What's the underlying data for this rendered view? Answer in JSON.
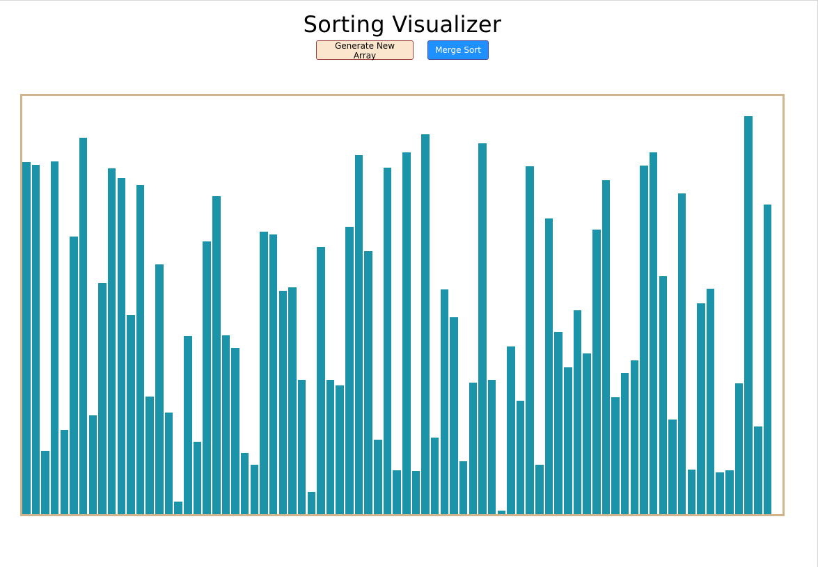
{
  "app": {
    "title": "Sorting Visualizer"
  },
  "controls": {
    "generate_label": "Generate New Array",
    "merge_sort_label": "Merge Sort"
  },
  "colors": {
    "bar": "#1b93a9",
    "container_border": "#d2b48c",
    "generate_button_bg": "#fce5cd",
    "merge_button_bg": "#1e90ff"
  },
  "array": {
    "max_value": 601,
    "values": [
      506,
      502,
      91,
      507,
      121,
      399,
      541,
      142,
      332,
      497,
      483,
      286,
      473,
      169,
      359,
      146,
      18,
      256,
      104,
      392,
      457,
      257,
      239,
      88,
      71,
      406,
      402,
      321,
      326,
      193,
      32,
      384,
      193,
      185,
      413,
      516,
      378,
      107,
      498,
      63,
      520,
      62,
      546,
      110,
      323,
      283,
      76,
      189,
      533,
      193,
      5,
      241,
      163,
      500,
      71,
      425,
      262,
      211,
      293,
      231,
      409,
      480,
      168,
      203,
      221,
      501,
      520,
      342,
      136,
      461,
      64,
      303,
      324,
      60,
      63,
      188,
      572,
      126,
      445
    ]
  }
}
